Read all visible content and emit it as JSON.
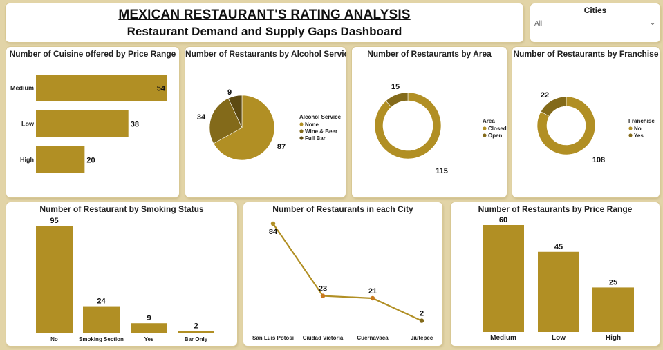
{
  "header": {
    "title": "MEXICAN RESTAURANT'S RATING ANALYSIS",
    "subtitle": "Restaurant Demand and Supply Gaps Dashboard"
  },
  "slicer": {
    "title": "Cities",
    "value": "All"
  },
  "colors": {
    "gold": "#b18f24",
    "dark": "#836a1a",
    "darkest": "#5d4a12",
    "orange": "#c97a1e"
  },
  "chart_data": [
    {
      "id": "cuisine",
      "type": "bar",
      "orientation": "horizontal",
      "title": "Number of Cuisine offered by Price Range",
      "categories": [
        "Medium",
        "Low",
        "High"
      ],
      "values": [
        54,
        38,
        20
      ],
      "xlim": [
        0,
        54
      ]
    },
    {
      "id": "alcohol",
      "type": "pie",
      "title": "Number of Restaurants by Alcohol Service",
      "legend_title": "Alcohol Service",
      "legend_position": "right",
      "categories": [
        "None",
        "Wine & Beer",
        "Full Bar"
      ],
      "values": [
        87,
        34,
        9
      ]
    },
    {
      "id": "area",
      "type": "pie",
      "donut": true,
      "title": "Number of Restaurants by Area",
      "legend_title": "Area",
      "legend_position": "right",
      "categories": [
        "Closed",
        "Open"
      ],
      "values": [
        115,
        15
      ]
    },
    {
      "id": "franchise",
      "type": "pie",
      "donut": true,
      "title": "Number of Restaurants by Franchise",
      "legend_title": "Franchise",
      "legend_position": "right",
      "categories": [
        "No",
        "Yes"
      ],
      "values": [
        108,
        22
      ]
    },
    {
      "id": "smoking",
      "type": "bar",
      "title": "Number of Restaurant by Smoking Status",
      "categories": [
        "No",
        "Smoking Section",
        "Yes",
        "Bar Only"
      ],
      "values": [
        95,
        24,
        9,
        2
      ],
      "ylim": [
        0,
        95
      ]
    },
    {
      "id": "city",
      "type": "line",
      "title": "Number of Restaurants in each City",
      "categories": [
        "San Luis Potosi",
        "Ciudad Victoria",
        "Cuernavaca",
        "Jiutepec"
      ],
      "values": [
        84,
        23,
        21,
        2
      ],
      "ylim": [
        0,
        84
      ]
    },
    {
      "id": "price",
      "type": "bar",
      "title": "Number of Restaurants by Price Range",
      "categories": [
        "Medium",
        "Low",
        "High"
      ],
      "values": [
        60,
        45,
        25
      ],
      "ylim": [
        0,
        60
      ]
    }
  ]
}
